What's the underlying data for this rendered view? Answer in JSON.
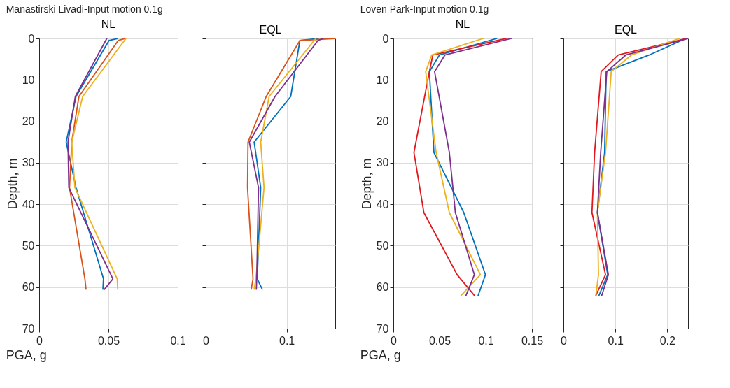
{
  "chart_data": [
    {
      "type": "line",
      "title": "NL",
      "annotations": [
        "Manastirski Livadi-Input motion 0.1g"
      ],
      "xlabel": "PGA, g",
      "ylabel": "Depth, m",
      "xlim": [
        0,
        0.1
      ],
      "xticks": [
        0,
        0.05,
        0.1
      ],
      "ylim": [
        70,
        0
      ],
      "yticks": [
        0,
        10,
        20,
        30,
        40,
        50,
        60,
        70
      ],
      "grid": true,
      "series": [
        {
          "color": "#0072bd",
          "x": [
            0.0567,
            0.0504,
            0.0266,
            0.0195,
            0.0266,
            0.0464,
            0.046
          ],
          "values": [
            0,
            0.5,
            14,
            25,
            36,
            58,
            60.5
          ]
        },
        {
          "color": "#d95319",
          "x": [
            0.0623,
            0.057,
            0.0287,
            0.0235,
            0.0219,
            0.033,
            0.0338
          ],
          "values": [
            0,
            0.5,
            14,
            25,
            36,
            58,
            60.5
          ]
        },
        {
          "color": "#edb120",
          "x": [
            0.0626,
            0.0314,
            0.0235,
            0.0258,
            0.0563,
            0.0567
          ],
          "values": [
            0,
            14,
            25,
            36,
            58,
            60.5
          ]
        },
        {
          "color": "#7e2f8e",
          "x": [
            0.0488,
            0.0261,
            0.0208,
            0.0214,
            0.0532,
            0.0472
          ],
          "values": [
            0,
            14,
            25,
            36,
            58,
            60.5
          ]
        }
      ]
    },
    {
      "type": "line",
      "title": "EQL",
      "xlim": [
        0,
        0.16
      ],
      "xticks": [
        0,
        0.1
      ],
      "ylim": [
        70,
        0
      ],
      "yticks": [
        0,
        10,
        20,
        30,
        40,
        50,
        60,
        70
      ],
      "grid": true,
      "tick_labels": "x",
      "series": [
        {
          "color": "#0072bd",
          "x": [
            0.139,
            0.1163,
            0.105,
            0.0598,
            0.0679,
            0.0636,
            0.0698
          ],
          "values": [
            0,
            0.5,
            14,
            25,
            36,
            58,
            60.5
          ]
        },
        {
          "color": "#d95319",
          "x": [
            0.16,
            0.1163,
            0.0747,
            0.0522,
            0.0516,
            0.0584,
            0.0562
          ],
          "values": [
            0,
            0.5,
            14,
            25,
            36,
            58,
            60.5
          ]
        },
        {
          "color": "#edb120",
          "x": [
            0.136,
            0.0783,
            0.0679,
            0.072,
            0.062,
            0.0598
          ],
          "values": [
            0,
            14,
            25,
            36,
            58,
            60.5
          ]
        },
        {
          "color": "#7e2f8e",
          "x": [
            0.145,
            0.1386,
            0.0856,
            0.0538,
            0.0652,
            0.063,
            0.0625
          ],
          "values": [
            0,
            0.5,
            14,
            25,
            36,
            58,
            60.5
          ]
        }
      ]
    },
    {
      "type": "line",
      "title": "NL",
      "annotations": [
        "Loven Park-Input motion 0.1g"
      ],
      "xlabel": "PGA, g",
      "ylabel": "Depth, m",
      "xlim": [
        0,
        0.15
      ],
      "xticks": [
        0,
        0.05,
        0.1,
        0.15
      ],
      "ylim": [
        70,
        0
      ],
      "yticks": [
        0,
        10,
        20,
        30,
        40,
        50,
        60,
        70
      ],
      "grid": true,
      "series": [
        {
          "color": "#0072bd",
          "x": [
            0.112,
            0.0498,
            0.039,
            0.0439,
            0.0762,
            0.0997,
            0.0918
          ],
          "values": [
            0,
            4,
            8,
            27.5,
            42,
            57,
            62
          ]
        },
        {
          "color": "#e0191f",
          "x": [
            0.122,
            0.0427,
            0.039,
            0.0223,
            0.033,
            0.069,
            0.0877
          ],
          "values": [
            0,
            4,
            8,
            27.5,
            42,
            57,
            62
          ]
        },
        {
          "color": "#edb120",
          "x": [
            0.0973,
            0.0415,
            0.035,
            0.0463,
            0.0606,
            0.0942,
            0.0733
          ],
          "values": [
            0,
            4,
            8,
            27.5,
            42,
            57,
            62
          ]
        },
        {
          "color": "#7e2f8e",
          "x": [
            0.1277,
            0.0558,
            0.0446,
            0.0606,
            0.0671,
            0.0877,
            0.0786
          ],
          "values": [
            0,
            4,
            8,
            27.5,
            42,
            57,
            62
          ]
        }
      ]
    },
    {
      "type": "line",
      "title": "EQL",
      "xlim": [
        0,
        0.24
      ],
      "xticks": [
        0,
        0.1,
        0.2
      ],
      "ylim": [
        70,
        0
      ],
      "yticks": [
        0,
        10,
        20,
        30,
        40,
        50,
        60,
        70
      ],
      "grid": true,
      "tick_labels": "x",
      "series": [
        {
          "color": "#0072bd",
          "x": [
            0.236,
            0.165,
            0.0823,
            0.0793,
            0.0654,
            0.0852,
            0.0684
          ],
          "values": [
            0,
            4,
            8,
            27.5,
            42,
            57,
            62
          ]
        },
        {
          "color": "#e0191f",
          "x": [
            0.237,
            0.1055,
            0.0726,
            0.06,
            0.0549,
            0.081,
            0.0624
          ],
          "values": [
            0,
            4,
            8,
            27.5,
            42,
            57,
            62
          ]
        },
        {
          "color": "#edb120",
          "x": [
            0.2236,
            0.131,
            0.092,
            0.081,
            0.0654,
            0.0675,
            0.0624
          ],
          "values": [
            0,
            4,
            8,
            27.5,
            42,
            57,
            62
          ]
        },
        {
          "color": "#7e2f8e",
          "x": [
            0.24,
            0.12,
            0.0835,
            0.0717,
            0.0654,
            0.0865,
            0.0738
          ],
          "values": [
            0,
            4,
            8,
            27.5,
            42,
            57,
            62
          ]
        }
      ]
    }
  ]
}
